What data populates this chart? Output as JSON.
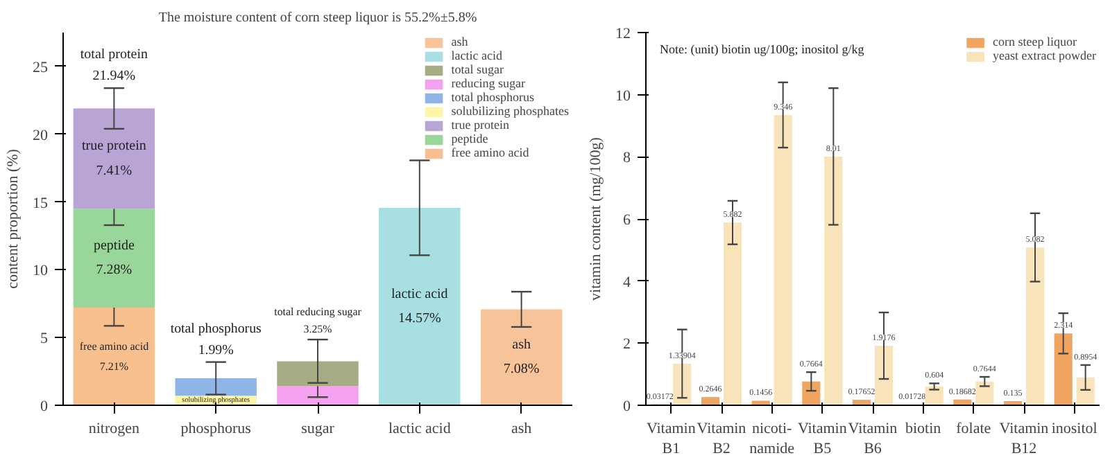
{
  "chart_data": [
    {
      "type": "bar",
      "title": "The moisture content of corn steep liquor is 55.2%±5.8%",
      "ylabel": "content proportion (%)",
      "categories": [
        "nitrogen",
        "phosphorus",
        "sugar",
        "lactic acid",
        "ash"
      ],
      "stacked": true,
      "ylim": [
        0,
        27.5
      ],
      "yticks": [
        0,
        5,
        10,
        15,
        20,
        25
      ],
      "legend": "top right",
      "series": [
        {
          "name": "free amino acid",
          "color": "#f8c08f",
          "values": [
            7.21,
            null,
            null,
            null,
            null
          ],
          "errors": [
            1.35,
            null,
            null,
            null,
            null
          ],
          "value_labels": [
            "free amino acid\n7.21%",
            null,
            null,
            null,
            null
          ]
        },
        {
          "name": "peptide",
          "color": "#98d69a",
          "values": [
            7.28,
            null,
            null,
            null,
            null
          ],
          "errors": [
            1.2,
            null,
            null,
            null,
            null
          ],
          "value_labels": [
            "peptide\n7.28%",
            null,
            null,
            null,
            null
          ]
        },
        {
          "name": "true protein",
          "color": "#b9a4d6",
          "values": [
            7.41,
            null,
            null,
            null,
            null
          ],
          "errors": [
            1.5,
            null,
            null,
            null,
            null
          ],
          "value_labels": [
            "true protein\n7.41%",
            null,
            null,
            null,
            null
          ]
        },
        {
          "name": "solubilizing phosphates",
          "color": "#fdf6a6",
          "values": [
            null,
            0.7,
            null,
            null,
            null
          ],
          "value_labels": [
            null,
            "solubilizing phosphates",
            null,
            null,
            null
          ]
        },
        {
          "name": "total phosphorus",
          "color": "#8fb4e8",
          "values": [
            null,
            1.29,
            null,
            null,
            null
          ],
          "errors": [
            null,
            1.2,
            null,
            null,
            null
          ]
        },
        {
          "name": "reducing sugar",
          "color": "#f6a0f0",
          "values": [
            null,
            null,
            1.4,
            null,
            null
          ],
          "errors": [
            null,
            null,
            0.8,
            null,
            null
          ]
        },
        {
          "name": "total sugar",
          "color": "#a8ac85",
          "values": [
            null,
            null,
            1.85,
            null,
            null
          ],
          "errors": [
            null,
            null,
            1.6,
            null,
            null
          ]
        },
        {
          "name": "lactic acid",
          "color": "#a8dfe2",
          "values": [
            null,
            null,
            null,
            14.57,
            null
          ],
          "errors": [
            null,
            null,
            null,
            3.5,
            null
          ],
          "value_labels": [
            null,
            null,
            null,
            "lactic acid\n14.57%",
            null
          ]
        },
        {
          "name": "ash",
          "color": "#f7c49a",
          "values": [
            null,
            null,
            null,
            null,
            7.08
          ],
          "errors": [
            null,
            null,
            null,
            null,
            1.3
          ],
          "value_labels": [
            null,
            null,
            null,
            null,
            "ash\n7.08%"
          ]
        }
      ],
      "totals": [
        "total protein\n21.94%",
        "total phosphorus\n1.99%",
        "total reducing sugar\n3.25%",
        null,
        null
      ]
    },
    {
      "type": "bar",
      "ylabel": "vitamin content (mg/100g)",
      "categories": [
        "Vitamin\nB1",
        "Vitamin\nB2",
        "nicoti-\nnamide",
        "Vitamin\nB5",
        "Vitamin\nB6",
        "biotin",
        "folate",
        "Vitamin\nB12",
        "inositol"
      ],
      "ylim": [
        0,
        12
      ],
      "yticks": [
        0,
        2,
        4,
        6,
        8,
        10,
        12
      ],
      "legend": "top right",
      "data_labels": true,
      "series": [
        {
          "name": "corn steep liquor",
          "color": "#f0a660",
          "values": [
            0.03172,
            0.2646,
            0.1456,
            0.7664,
            0.17652,
            0.01728,
            0.18682,
            0.135,
            2.314
          ],
          "errors": [
            null,
            null,
            null,
            0.3,
            null,
            null,
            null,
            null,
            0.65
          ]
        },
        {
          "name": "yeast extract powder",
          "color": "#f8e3bb",
          "values": [
            1.33904,
            5.882,
            9.346,
            8.01,
            1.9176,
            0.604,
            0.7644,
            5.082,
            0.8954
          ],
          "errors": [
            1.1,
            0.7,
            1.05,
            2.2,
            1.07,
            0.1,
            0.15,
            1.1,
            0.4
          ]
        }
      ],
      "annotations": [
        "Note: (unit) biotin ug/100g; inositol g/kg"
      ]
    }
  ]
}
